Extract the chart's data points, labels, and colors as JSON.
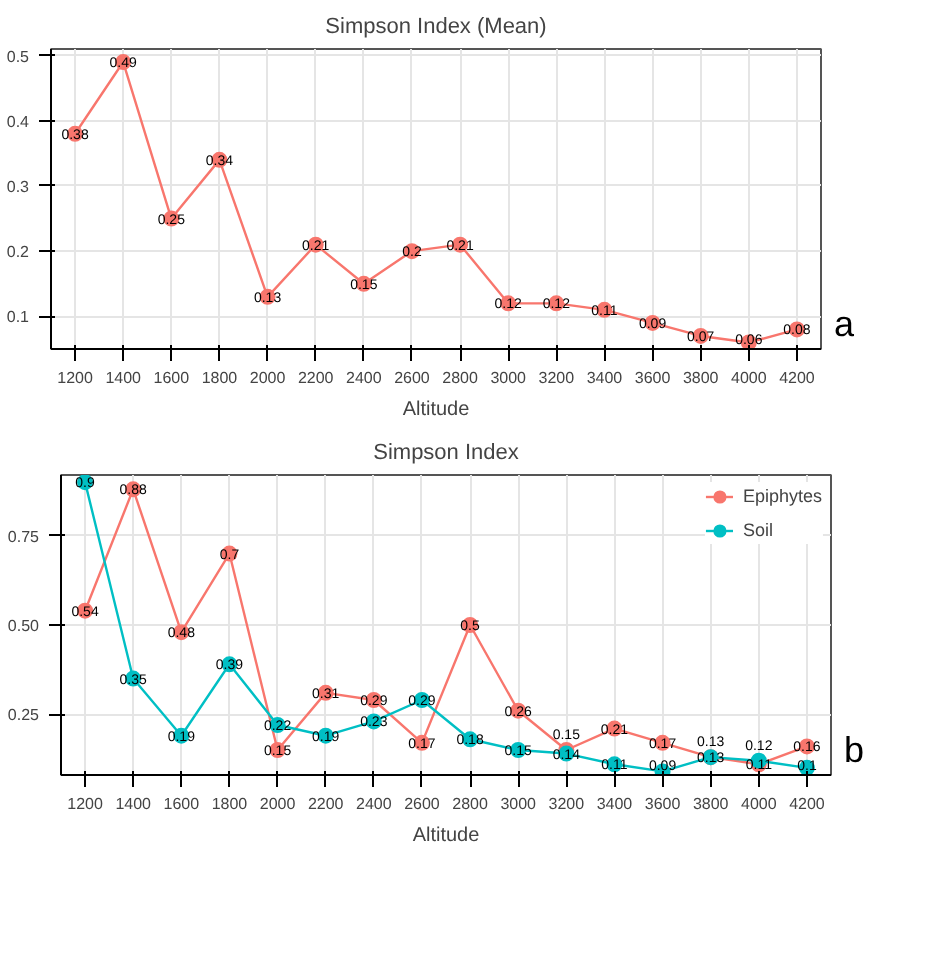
{
  "chart_data": [
    {
      "type": "line",
      "title": "Simpson Index (Mean)",
      "xlabel": "Altitude",
      "categories": [
        "1200",
        "1400",
        "1600",
        "1800",
        "2000",
        "2200",
        "2400",
        "2600",
        "2800",
        "3000",
        "3200",
        "3400",
        "3600",
        "3800",
        "4000",
        "4200"
      ],
      "series": [
        {
          "color": "#f8766d",
          "values": [
            0.38,
            0.49,
            0.25,
            0.34,
            0.13,
            0.21,
            0.15,
            0.2,
            0.21,
            0.12,
            0.12,
            0.11,
            0.09,
            0.07,
            0.06,
            0.08
          ]
        }
      ],
      "ylim": [
        0.05,
        0.51
      ],
      "yticks": [
        0.1,
        0.2,
        0.3,
        0.4,
        0.5
      ],
      "grid": true,
      "marker": "circle",
      "data_labels": true,
      "annotations": [
        "a"
      ]
    },
    {
      "type": "line",
      "title": "Simpson Index",
      "xlabel": "Altitude",
      "categories": [
        "1200",
        "1400",
        "1600",
        "1800",
        "2000",
        "2200",
        "2400",
        "2600",
        "2800",
        "3000",
        "3200",
        "3400",
        "3600",
        "3800",
        "4000",
        "4200"
      ],
      "series": [
        {
          "name": "Epiphytes",
          "color": "#f8766d",
          "values": [
            0.54,
            0.88,
            0.48,
            0.7,
            0.15,
            0.31,
            0.29,
            0.17,
            0.5,
            0.26,
            0.15,
            0.21,
            0.17,
            0.13,
            0.11,
            0.16
          ]
        },
        {
          "name": "Soil",
          "color": "#00bfc4",
          "values": [
            0.9,
            0.35,
            0.19,
            0.39,
            0.22,
            0.19,
            0.23,
            0.29,
            0.18,
            0.15,
            0.14,
            0.11,
            0.09,
            0.13,
            0.12,
            0.1
          ]
        }
      ],
      "ylim": [
        0.08,
        0.92
      ],
      "yticks": [
        {
          "value": 0.25,
          "label": "0.25"
        },
        {
          "value": 0.5,
          "label": "0.50"
        },
        {
          "value": 0.75,
          "label": "0.75"
        }
      ],
      "grid": true,
      "marker": "circle",
      "data_labels": true,
      "legend": "top right",
      "annotations": [
        "b"
      ]
    }
  ]
}
